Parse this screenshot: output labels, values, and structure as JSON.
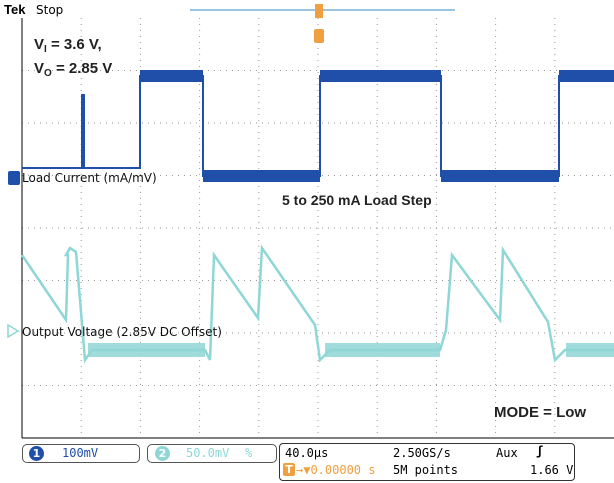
{
  "header": {
    "brand": "Tek",
    "state": "Stop"
  },
  "annotations": {
    "vi_line_prefix": "V",
    "vi_sub": "I",
    "vi_value": " = 3.6 V,",
    "vo_line_prefix": "V",
    "vo_sub": "O",
    "vo_value": " = 2.85 V",
    "load_step": "5 to 250 mA Load Step",
    "mode": "MODE = Low"
  },
  "channels": [
    {
      "id": 1,
      "marker": "1",
      "label": "Load Current (mA/mV)",
      "scale": "100mV",
      "color": "#1f4fa8"
    },
    {
      "id": 2,
      "marker": "2",
      "label": "Output Voltage (2.85V DC Offset)",
      "scale": "50.0mV",
      "scale_suffix": "%",
      "color": "#8fd6d6"
    }
  ],
  "trigger": {
    "marker": "T"
  },
  "status_bar": {
    "ch1_num": "1",
    "ch1_scale": "100mV",
    "ch2_num": "2",
    "ch2_scale": "50.0mV",
    "ch2_suffix": "%",
    "timebase": "40.0µs",
    "sample_rate": "2.50GS/s",
    "trigger_source": "Aux",
    "trigger_slope": "ʃ",
    "trigger_marker": "T",
    "delay": "→▼0.00000 s",
    "record_length": "5M points",
    "trigger_level": "1.66 V"
  },
  "colors": {
    "ch1": "#1f4fa8",
    "ch2": "#8fd6d6",
    "trigger": "#f0a040",
    "grid": "#9a9a9a"
  }
}
